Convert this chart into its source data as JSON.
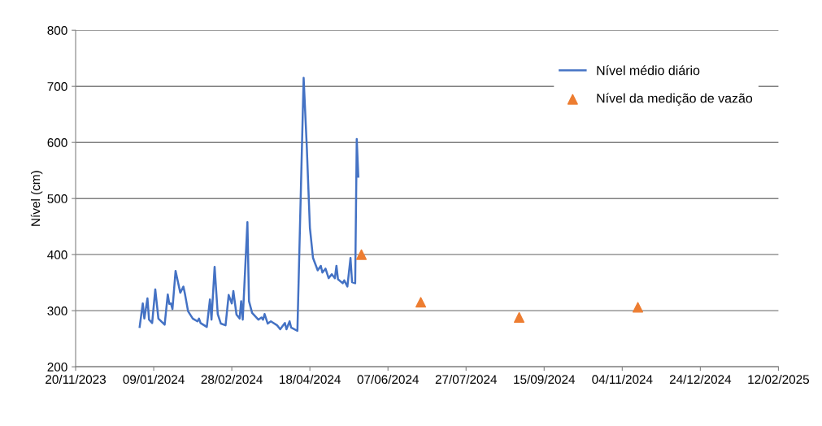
{
  "chart_data": {
    "type": "line",
    "ylabel": "Nível (cm)",
    "xlim": [
      "2023-11-20",
      "2025-02-12"
    ],
    "xticks": [
      {
        "value": "2023-11-20",
        "label": "20/11/2023"
      },
      {
        "value": "2024-01-09",
        "label": "09/01/2024"
      },
      {
        "value": "2024-02-28",
        "label": "28/02/2024"
      },
      {
        "value": "2024-04-18",
        "label": "18/04/2024"
      },
      {
        "value": "2024-06-07",
        "label": "07/06/2024"
      },
      {
        "value": "2024-07-27",
        "label": "27/07/2024"
      },
      {
        "value": "2024-09-15",
        "label": "15/09/2024"
      },
      {
        "value": "2024-11-04",
        "label": "04/11/2024"
      },
      {
        "value": "2024-12-24",
        "label": "24/12/2024"
      },
      {
        "value": "2025-02-12",
        "label": "12/02/2025"
      }
    ],
    "ylim": [
      200,
      800
    ],
    "yticks": [
      200,
      300,
      400,
      500,
      600,
      700,
      800
    ],
    "grid": "y",
    "legend": "top right",
    "series": [
      {
        "name": "Nível médio diário",
        "color": "#4472c4",
        "marker": "none",
        "line_style": "solid",
        "x": [
          "2023-12-31",
          "2024-01-02",
          "2024-01-03",
          "2024-01-05",
          "2024-01-06",
          "2024-01-08",
          "2024-01-10",
          "2024-01-12",
          "2024-01-16",
          "2024-01-18",
          "2024-01-19",
          "2024-01-20",
          "2024-01-21",
          "2024-01-23",
          "2024-01-26",
          "2024-01-28",
          "2024-01-29",
          "2024-01-31",
          "2024-02-03",
          "2024-02-06",
          "2024-02-07",
          "2024-02-08",
          "2024-02-12",
          "2024-02-14",
          "2024-02-15",
          "2024-02-17",
          "2024-02-19",
          "2024-02-21",
          "2024-02-24",
          "2024-02-26",
          "2024-02-28",
          "2024-02-29",
          "2024-03-02",
          "2024-03-04",
          "2024-03-05",
          "2024-03-06",
          "2024-03-09",
          "2024-03-10",
          "2024-03-12",
          "2024-03-16",
          "2024-03-18",
          "2024-03-19",
          "2024-03-20",
          "2024-03-22",
          "2024-03-24",
          "2024-03-28",
          "2024-03-30",
          "2024-04-02",
          "2024-04-03",
          "2024-04-05",
          "2024-04-06",
          "2024-04-10",
          "2024-04-14",
          "2024-04-16",
          "2024-04-18",
          "2024-04-20",
          "2024-04-23",
          "2024-04-25",
          "2024-04-26",
          "2024-04-28",
          "2024-04-30",
          "2024-05-02",
          "2024-05-04",
          "2024-05-05",
          "2024-05-06",
          "2024-05-09",
          "2024-05-10",
          "2024-05-12",
          "2024-05-14",
          "2024-05-15",
          "2024-05-17",
          "2024-05-18",
          "2024-05-19"
        ],
        "values": [
          271,
          313,
          286,
          322,
          284,
          278,
          338,
          286,
          275,
          329,
          312,
          313,
          303,
          371,
          332,
          343,
          330,
          299,
          286,
          281,
          286,
          278,
          271,
          320,
          284,
          378,
          294,
          277,
          274,
          328,
          313,
          335,
          293,
          286,
          317,
          284,
          458,
          317,
          296,
          284,
          288,
          284,
          294,
          277,
          281,
          274,
          267,
          278,
          267,
          281,
          270,
          264,
          715,
          593,
          448,
          394,
          372,
          380,
          368,
          375,
          358,
          365,
          358,
          380,
          356,
          349,
          354,
          343,
          394,
          351,
          349,
          606,
          539
        ]
      },
      {
        "name": "Nível da medição de vazão",
        "type": "scatter",
        "color": "#ed7d31",
        "marker": "triangle",
        "x": [
          "2024-05-21",
          "2024-06-28",
          "2024-08-30",
          "2024-11-14"
        ],
        "values": [
          400,
          315,
          288,
          306
        ]
      }
    ]
  }
}
